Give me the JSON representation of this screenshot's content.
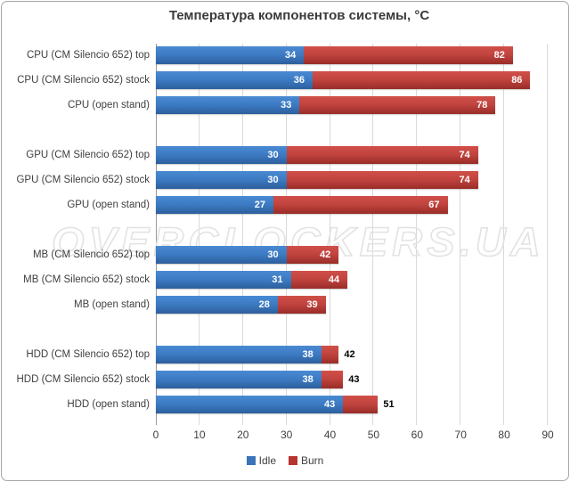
{
  "title": "Температура компонентов системы, °C",
  "watermark": "OVERCLOCKERS.UA",
  "colors": {
    "idle_mid": "#3a74b8",
    "idle_top": "#4a8ad3",
    "idle_bottom": "#2d5f9d",
    "burn_mid": "#b6352f",
    "burn_top": "#d05049",
    "burn_bottom": "#992d28",
    "gridline": "#d9d9d9",
    "axis_line": "#9a9a9a",
    "text": "#3f3f3f",
    "value_inside": "#ffffff",
    "value_outside": "#000000"
  },
  "legend": [
    {
      "label": "Idle",
      "color": "#3a74b8"
    },
    {
      "label": "Burn",
      "color": "#b6352f"
    }
  ],
  "chart_data": {
    "type": "bar",
    "orientation": "horizontal",
    "stacked": true,
    "title": "Температура компонентов системы, °C",
    "xlabel": "",
    "ylabel": "",
    "xlim": [
      0,
      90
    ],
    "xticks": [
      0,
      10,
      20,
      30,
      40,
      50,
      60,
      70,
      80,
      90
    ],
    "grid": true,
    "legend_position": "bottom",
    "series_names": [
      "Idle",
      "Burn"
    ],
    "groups": [
      {
        "name": "CPU",
        "rows": [
          {
            "label": "CPU (CM Silencio 652) top",
            "idle": 34,
            "burn": 82
          },
          {
            "label": "CPU (CM Silencio 652) stock",
            "idle": 36,
            "burn": 86
          },
          {
            "label": "CPU (open stand)",
            "idle": 33,
            "burn": 78
          }
        ]
      },
      {
        "name": "GPU",
        "rows": [
          {
            "label": "GPU (CM Silencio 652) top",
            "idle": 30,
            "burn": 74
          },
          {
            "label": "GPU (CM Silencio 652) stock",
            "idle": 30,
            "burn": 74
          },
          {
            "label": "GPU (open stand)",
            "idle": 27,
            "burn": 67
          }
        ]
      },
      {
        "name": "MB",
        "rows": [
          {
            "label": "MB (CM Silencio 652) top",
            "idle": 30,
            "burn": 42
          },
          {
            "label": "MB (CM Silencio 652) stock",
            "idle": 31,
            "burn": 44
          },
          {
            "label": "MB (open stand)",
            "idle": 28,
            "burn": 39
          }
        ]
      },
      {
        "name": "HDD",
        "rows": [
          {
            "label": "HDD (CM Silencio 652) top",
            "idle": 38,
            "burn": 42
          },
          {
            "label": "HDD (CM Silencio 652) stock",
            "idle": 38,
            "burn": 43
          },
          {
            "label": "HDD (open stand)",
            "idle": 43,
            "burn": 51
          }
        ]
      }
    ]
  }
}
